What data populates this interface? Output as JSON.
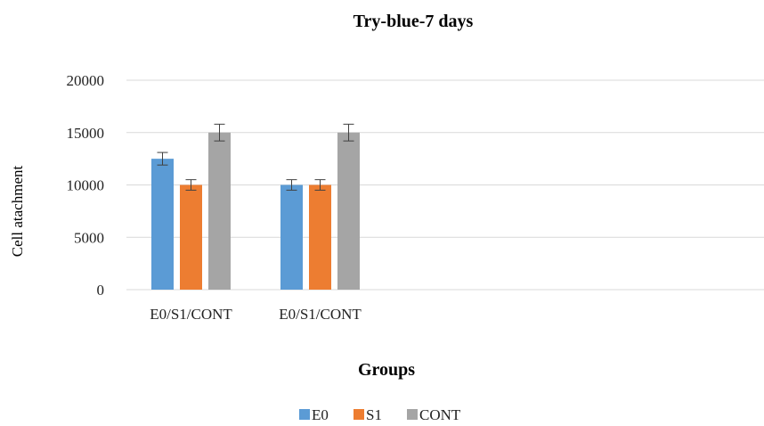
{
  "chart_data": {
    "type": "bar",
    "title": "Try-blue-7 days",
    "xlabel": "Groups",
    "ylabel": "Cell atachment",
    "categories": [
      "E0/S1/CONT",
      "E0/S1/CONT"
    ],
    "series": [
      {
        "name": "E0",
        "values": [
          12500,
          10000
        ],
        "errors": [
          600,
          500
        ]
      },
      {
        "name": "S1",
        "values": [
          10000,
          10000
        ],
        "errors": [
          500,
          500
        ]
      },
      {
        "name": "CONT",
        "values": [
          15000,
          15000
        ],
        "errors": [
          800,
          800
        ]
      }
    ],
    "ylim": [
      0,
      20000
    ],
    "yticks": [
      0,
      5000,
      10000,
      15000,
      20000
    ],
    "grid": true,
    "legend": "bottom",
    "colors": {
      "E0": "#5b9bd5",
      "S1": "#ed7d31",
      "CONT": "#a5a5a5",
      "grid": "#d9d9d9",
      "errorbar": "#404040"
    }
  }
}
